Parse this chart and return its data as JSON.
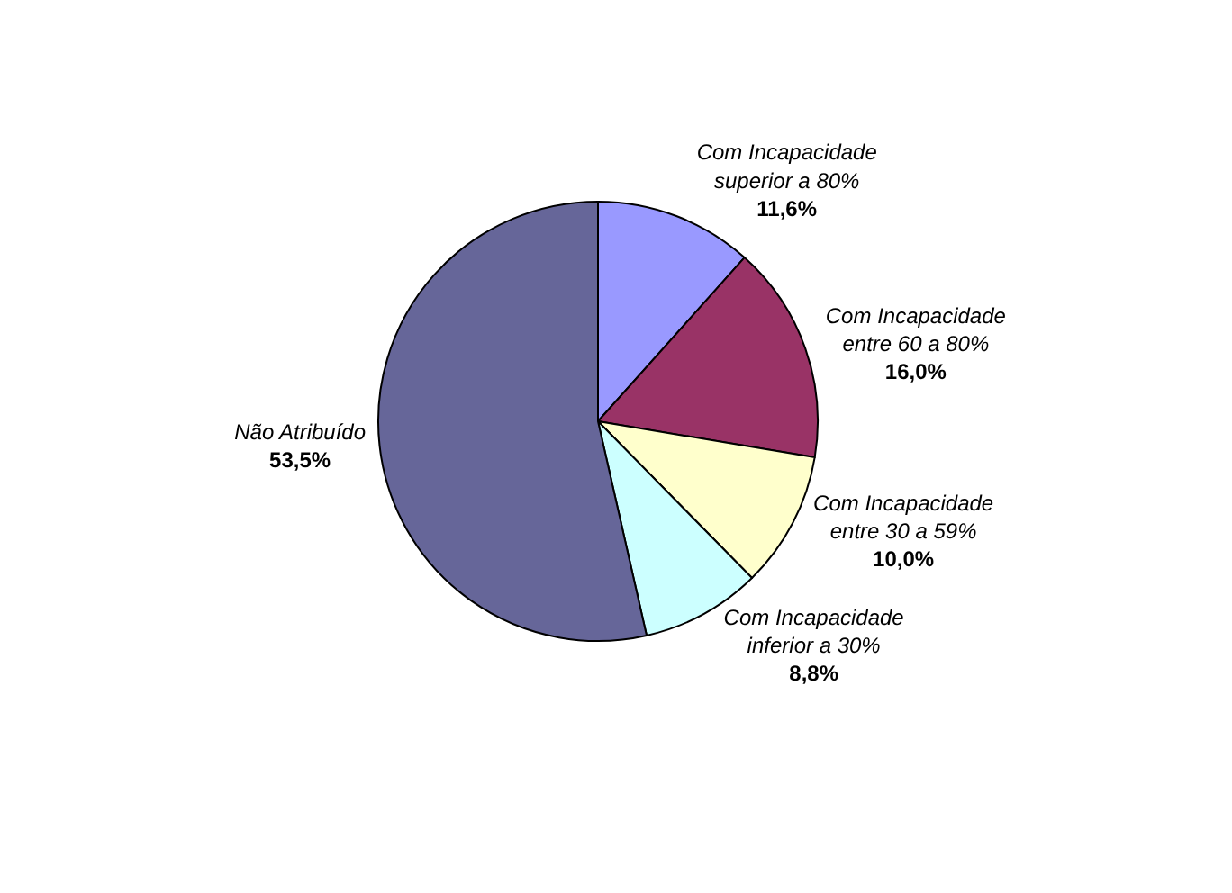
{
  "chart_data": {
    "type": "pie",
    "categories": [
      "Com Incapacidade\nsuperior a 80%",
      "Com Incapacidade\nentre 60 a 80%",
      "Com Incapacidade\nentre 30 a 59%",
      "Com Incapacidade\ninferior a 30%",
      "Não Atribuído"
    ],
    "values": [
      11.6,
      16.0,
      10.0,
      8.8,
      53.5
    ],
    "value_labels": [
      "11,6%",
      "16,0%",
      "10,0%",
      "8,8%",
      "53,5%"
    ],
    "colors": [
      "#9999ff",
      "#993366",
      "#ffffcc",
      "#ccffff",
      "#666699"
    ],
    "legend": false
  }
}
